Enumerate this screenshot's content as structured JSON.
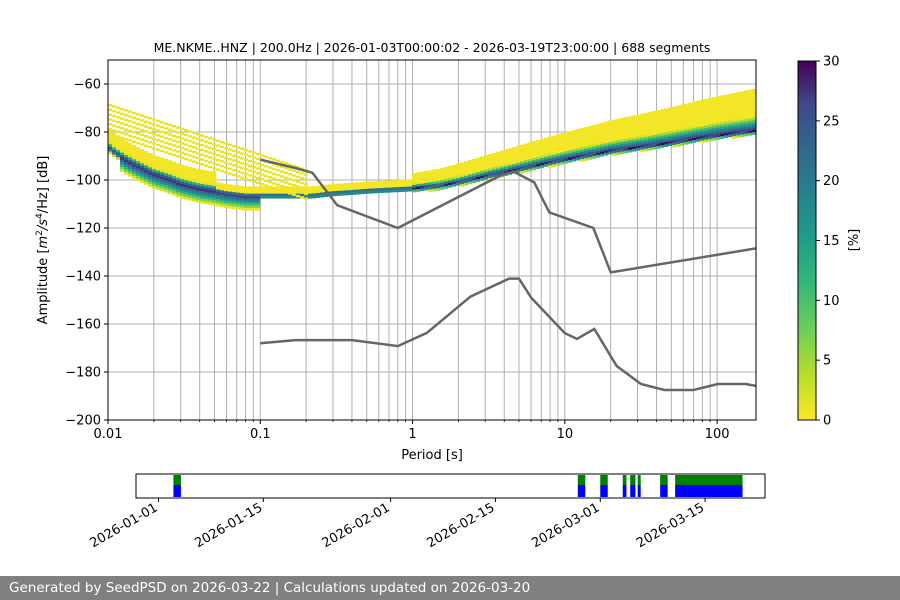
{
  "chart_data": [
    {
      "type": "heatmap",
      "title": "ME.NKME..HNZ | 200.0Hz | 2026-01-03T00:00:02 - 2026-03-19T23:00:00 | 688 segments",
      "xlabel": "Period [s]",
      "ylabel_prefix": "Amplitude [",
      "ylabel_math": "m",
      "ylabel_sup1": "2",
      "ylabel_mid": "/s",
      "ylabel_sup2": "4",
      "ylabel_tail": "/Hz] [dB]",
      "x_scale": "log",
      "xlim": [
        0.01,
        180
      ],
      "ylim": [
        -200,
        -50
      ],
      "x_tick_values": [
        0.01,
        0.1,
        1,
        10,
        100
      ],
      "x_tick_labels": [
        "0.01",
        "0.1",
        "1",
        "10",
        "100"
      ],
      "y_ticks": [
        -60,
        -80,
        -100,
        -120,
        -140,
        -160,
        -180,
        -200
      ],
      "y_tick_labels": [
        "−60",
        "−80",
        "−100",
        "−120",
        "−140",
        "−160",
        "−180",
        "−200"
      ],
      "grid": true,
      "colormap": "viridis_r",
      "colorbar": {
        "label": "[%]",
        "range": [
          0,
          30
        ],
        "ticks": [
          0,
          5,
          10,
          15,
          20,
          25,
          30
        ],
        "tick_labels": [
          "0",
          "5",
          "10",
          "15",
          "20",
          "25",
          "30"
        ]
      },
      "psd_mode_band": {
        "x": [
          0.01,
          0.011,
          0.013,
          0.016,
          0.02,
          0.025,
          0.03,
          0.04,
          0.05,
          0.06,
          0.08,
          0.1,
          0.13,
          0.17,
          0.22,
          0.3,
          0.4,
          0.5,
          0.7,
          1,
          1.5,
          2,
          3,
          5,
          7,
          10,
          15,
          20,
          30,
          50,
          70,
          100,
          180
        ],
        "y": [
          -86,
          -88,
          -91,
          -94,
          -97,
          -99,
          -101,
          -103,
          -104,
          -105,
          -106,
          -106,
          -106,
          -106,
          -106,
          -105,
          -104.5,
          -104,
          -103.5,
          -103,
          -102,
          -100.5,
          -98,
          -95,
          -93,
          -91,
          -89,
          -87.5,
          -86,
          -84,
          -82.5,
          -81,
          -79
        ]
      },
      "noise_models": [
        {
          "x": [
            0.1,
            0.17,
            0.22,
            0.32,
            0.8,
            3.8,
            4.6,
            6.3,
            7.9,
            15.4,
            20,
            180
          ],
          "y": [
            -91.5,
            -95,
            -97,
            -110.5,
            -120,
            -98,
            -96.5,
            -101,
            -113.5,
            -120,
            -138.5,
            -128.5
          ]
        },
        {
          "x": [
            0.1,
            0.17,
            0.4,
            0.8,
            1.24,
            2.4,
            4.3,
            5,
            6,
            10,
            12,
            15.6,
            21.9,
            31.6,
            45,
            70,
            101,
            154,
            180
          ],
          "y": [
            -168,
            -166.7,
            -166.7,
            -169.2,
            -163.7,
            -148.6,
            -141.1,
            -141.1,
            -149,
            -163.8,
            -166.2,
            -162.1,
            -177.5,
            -185,
            -187.5,
            -187.5,
            -185,
            -185,
            -185.8
          ]
        }
      ]
    },
    {
      "type": "timeline",
      "x_tick_labels": [
        "2026-01-01",
        "2026-01-15",
        "2026-02-01",
        "2026-02-15",
        "2026-03-01",
        "2026-03-15"
      ],
      "x_tick_dates": [
        "2026-01-01",
        "2026-01-15",
        "2026-02-01",
        "2026-02-15",
        "2026-03-01",
        "2026-03-15"
      ],
      "xlim": [
        "2025-12-29",
        "2026-03-23"
      ],
      "colors": {
        "top": "#008000",
        "bottom": "#0000ff"
      },
      "segments": [
        [
          "2026-01-03",
          "2026-01-04"
        ],
        [
          "2026-02-26",
          "2026-02-27"
        ],
        [
          "2026-03-01",
          "2026-03-02"
        ],
        [
          "2026-03-04",
          "2026-03-04.5"
        ],
        [
          "2026-03-05",
          "2026-03-05.7"
        ],
        [
          "2026-03-06",
          "2026-03-06.4"
        ],
        [
          "2026-03-09",
          "2026-03-10"
        ],
        [
          "2026-03-11",
          "2026-03-20"
        ]
      ]
    }
  ],
  "footer": {
    "text": "Generated by SeedPSD on 2026-03-22 | Calculations updated on 2026-03-20"
  },
  "colors": {
    "axis": "#000000",
    "grid": "#b0b0b0",
    "model_line": "#666666",
    "footer_bg": "#808080"
  }
}
